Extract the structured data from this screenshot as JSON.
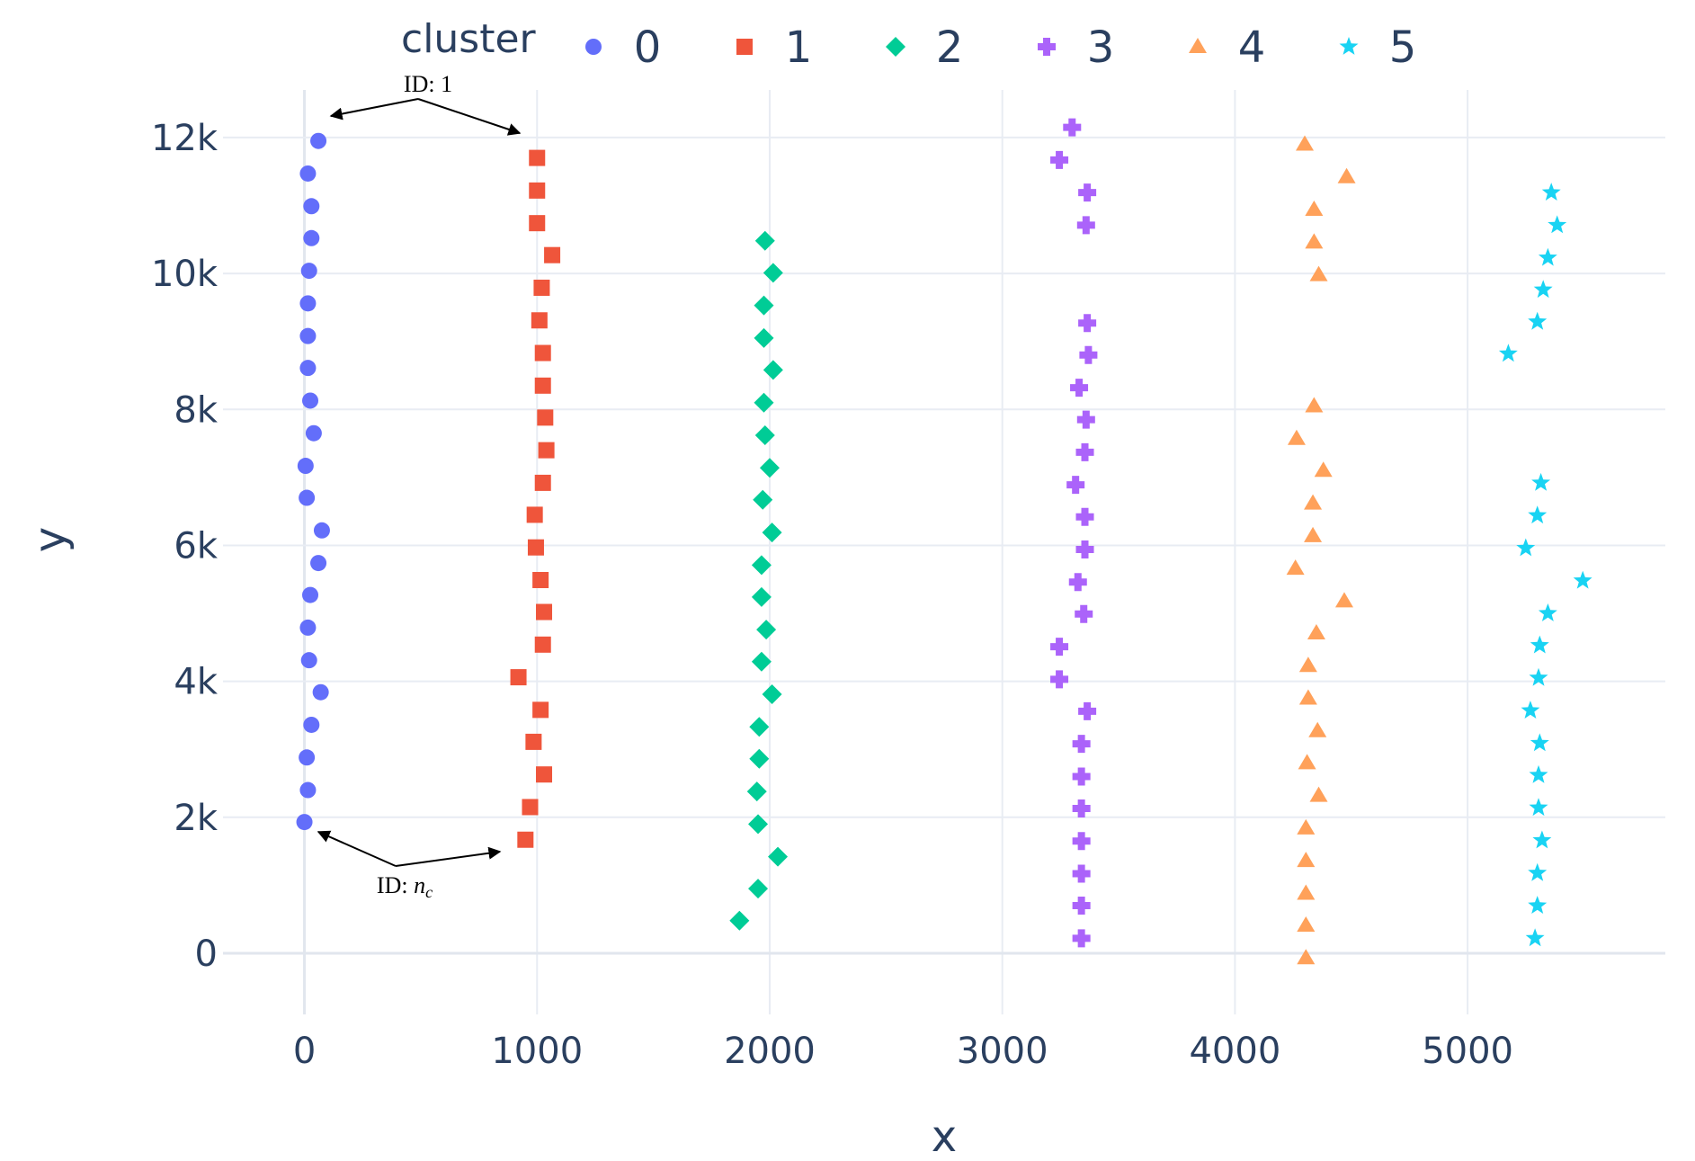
{
  "chart_data": {
    "type": "scatter",
    "xlabel": "x",
    "ylabel": "y",
    "xlim": [
      -350,
      5850
    ],
    "ylim": [
      -900,
      12700
    ],
    "x_ticks": [
      0,
      1000,
      2000,
      3000,
      4000,
      5000
    ],
    "x_tick_labels": [
      "0",
      "1000",
      "2000",
      "3000",
      "4000",
      "5000"
    ],
    "y_ticks": [
      0,
      2000,
      4000,
      6000,
      8000,
      10000,
      12000
    ],
    "y_tick_labels": [
      "0",
      "2k",
      "4k",
      "6k",
      "8k",
      "10k",
      "12k"
    ],
    "grid": true,
    "legend": {
      "title": "cluster",
      "placement": "top, horizontal"
    },
    "series": [
      {
        "name": "0",
        "color": "#636efa",
        "symbol": "circle",
        "points": [
          [
            60,
            11950
          ],
          [
            15,
            11470
          ],
          [
            30,
            10990
          ],
          [
            30,
            10520
          ],
          [
            20,
            10040
          ],
          [
            15,
            9560
          ],
          [
            15,
            9080
          ],
          [
            15,
            8610
          ],
          [
            25,
            8130
          ],
          [
            40,
            7650
          ],
          [
            5,
            7170
          ],
          [
            10,
            6700
          ],
          [
            75,
            6220
          ],
          [
            60,
            5740
          ],
          [
            25,
            5270
          ],
          [
            15,
            4790
          ],
          [
            20,
            4310
          ],
          [
            70,
            3840
          ],
          [
            30,
            3360
          ],
          [
            10,
            2880
          ],
          [
            15,
            2400
          ],
          [
            0,
            1930
          ]
        ]
      },
      {
        "name": "1",
        "color": "#ef553b",
        "symbol": "square",
        "points": [
          [
            1000,
            11700
          ],
          [
            1000,
            11220
          ],
          [
            1000,
            10740
          ],
          [
            1065,
            10270
          ],
          [
            1020,
            9790
          ],
          [
            1010,
            9310
          ],
          [
            1025,
            8830
          ],
          [
            1025,
            8350
          ],
          [
            1035,
            7880
          ],
          [
            1040,
            7400
          ],
          [
            1025,
            6920
          ],
          [
            990,
            6450
          ],
          [
            995,
            5970
          ],
          [
            1015,
            5490
          ],
          [
            1030,
            5020
          ],
          [
            1025,
            4540
          ],
          [
            920,
            4060
          ],
          [
            1015,
            3580
          ],
          [
            985,
            3110
          ],
          [
            1030,
            2630
          ],
          [
            970,
            2150
          ],
          [
            950,
            1670
          ]
        ]
      },
      {
        "name": "2",
        "color": "#00cc96",
        "symbol": "diamond",
        "points": [
          [
            1980,
            10480
          ],
          [
            2015,
            10010
          ],
          [
            1975,
            9530
          ],
          [
            1975,
            9050
          ],
          [
            2015,
            8580
          ],
          [
            1975,
            8100
          ],
          [
            1980,
            7620
          ],
          [
            2000,
            7140
          ],
          [
            1970,
            6670
          ],
          [
            2010,
            6190
          ],
          [
            1965,
            5710
          ],
          [
            1965,
            5240
          ],
          [
            1985,
            4760
          ],
          [
            1965,
            4290
          ],
          [
            2010,
            3810
          ],
          [
            1955,
            3330
          ],
          [
            1955,
            2860
          ],
          [
            1945,
            2380
          ],
          [
            1950,
            1900
          ],
          [
            2035,
            1420
          ],
          [
            1950,
            950
          ],
          [
            1870,
            480
          ]
        ]
      },
      {
        "name": "3",
        "color": "#ab63fa",
        "symbol": "cross",
        "points": [
          [
            3300,
            12150
          ],
          [
            3245,
            11670
          ],
          [
            3365,
            11190
          ],
          [
            3360,
            10710
          ],
          [
            3365,
            9270
          ],
          [
            3370,
            8800
          ],
          [
            3330,
            8320
          ],
          [
            3360,
            7850
          ],
          [
            3355,
            7370
          ],
          [
            3315,
            6890
          ],
          [
            3355,
            6420
          ],
          [
            3355,
            5940
          ],
          [
            3325,
            5460
          ],
          [
            3350,
            4990
          ],
          [
            3245,
            4510
          ],
          [
            3245,
            4030
          ],
          [
            3365,
            3560
          ],
          [
            3340,
            3080
          ],
          [
            3340,
            2600
          ],
          [
            3340,
            2130
          ],
          [
            3340,
            1650
          ],
          [
            3340,
            1170
          ],
          [
            3340,
            700
          ],
          [
            3340,
            220
          ]
        ]
      },
      {
        "name": "4",
        "color": "#ffa15a",
        "symbol": "triangle-up",
        "points": [
          [
            4300,
            11900
          ],
          [
            4480,
            11420
          ],
          [
            4340,
            10940
          ],
          [
            4340,
            10460
          ],
          [
            4360,
            9980
          ],
          [
            4340,
            8050
          ],
          [
            4265,
            7570
          ],
          [
            4380,
            7100
          ],
          [
            4335,
            6620
          ],
          [
            4335,
            6140
          ],
          [
            4260,
            5660
          ],
          [
            4470,
            5180
          ],
          [
            4350,
            4710
          ],
          [
            4315,
            4230
          ],
          [
            4315,
            3750
          ],
          [
            4355,
            3270
          ],
          [
            4310,
            2800
          ],
          [
            4360,
            2320
          ],
          [
            4305,
            1840
          ],
          [
            4305,
            1360
          ],
          [
            4305,
            880
          ],
          [
            4305,
            410
          ],
          [
            4305,
            -70
          ]
        ]
      },
      {
        "name": "5",
        "color": "#19d3f3",
        "symbol": "star",
        "points": [
          [
            5360,
            11190
          ],
          [
            5385,
            10710
          ],
          [
            5345,
            10230
          ],
          [
            5325,
            9760
          ],
          [
            5300,
            9290
          ],
          [
            5175,
            8820
          ],
          [
            5315,
            6920
          ],
          [
            5300,
            6440
          ],
          [
            5250,
            5960
          ],
          [
            5495,
            5480
          ],
          [
            5345,
            5000
          ],
          [
            5310,
            4530
          ],
          [
            5305,
            4050
          ],
          [
            5270,
            3570
          ],
          [
            5310,
            3090
          ],
          [
            5305,
            2620
          ],
          [
            5305,
            2140
          ],
          [
            5320,
            1660
          ],
          [
            5300,
            1180
          ],
          [
            5300,
            700
          ],
          [
            5290,
            220
          ]
        ]
      }
    ],
    "annotations": [
      {
        "label": "ID: 1"
      },
      {
        "label_prefix": "ID: ",
        "label_math": "n",
        "label_math_sub": "c"
      }
    ]
  }
}
